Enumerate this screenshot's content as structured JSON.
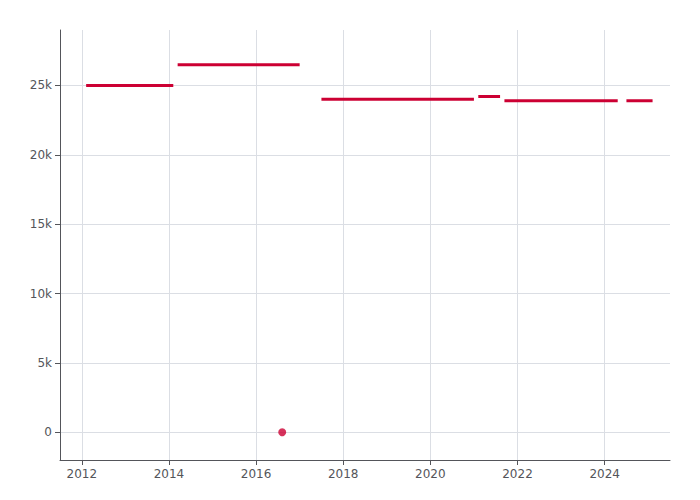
{
  "chart_data": {
    "type": "line",
    "color": "#cc0033",
    "series": [
      {
        "x": [
          2012.1,
          2014.1
        ],
        "values": [
          25000,
          25000
        ]
      },
      {
        "x": [
          2014.2,
          2017.0
        ],
        "values": [
          26500,
          26500
        ]
      },
      {
        "type": "scatter",
        "marker": "circle",
        "x": [
          2016.6
        ],
        "values": [
          0
        ]
      },
      {
        "x": [
          2017.5,
          2021.0
        ],
        "values": [
          24000,
          24000
        ]
      },
      {
        "x": [
          2021.1,
          2021.6
        ],
        "values": [
          24200,
          24200
        ]
      },
      {
        "x": [
          2021.7,
          2024.3
        ],
        "values": [
          23900,
          23900
        ]
      },
      {
        "x": [
          2024.5,
          2025.1
        ],
        "values": [
          23900,
          23900
        ]
      }
    ],
    "xlim": [
      2011.5,
      2025.5
    ],
    "xticks": [
      2012,
      2014,
      2016,
      2018,
      2020,
      2022,
      2024
    ],
    "ylim": [
      -2000,
      29000
    ],
    "yticks": [
      0,
      {
        "value": 5000,
        "label": "5k"
      },
      {
        "value": 10000,
        "label": "10k"
      },
      {
        "value": 15000,
        "label": "15k"
      },
      {
        "value": 20000,
        "label": "20k"
      },
      {
        "value": 25000,
        "label": "25k"
      }
    ],
    "grid": true
  }
}
